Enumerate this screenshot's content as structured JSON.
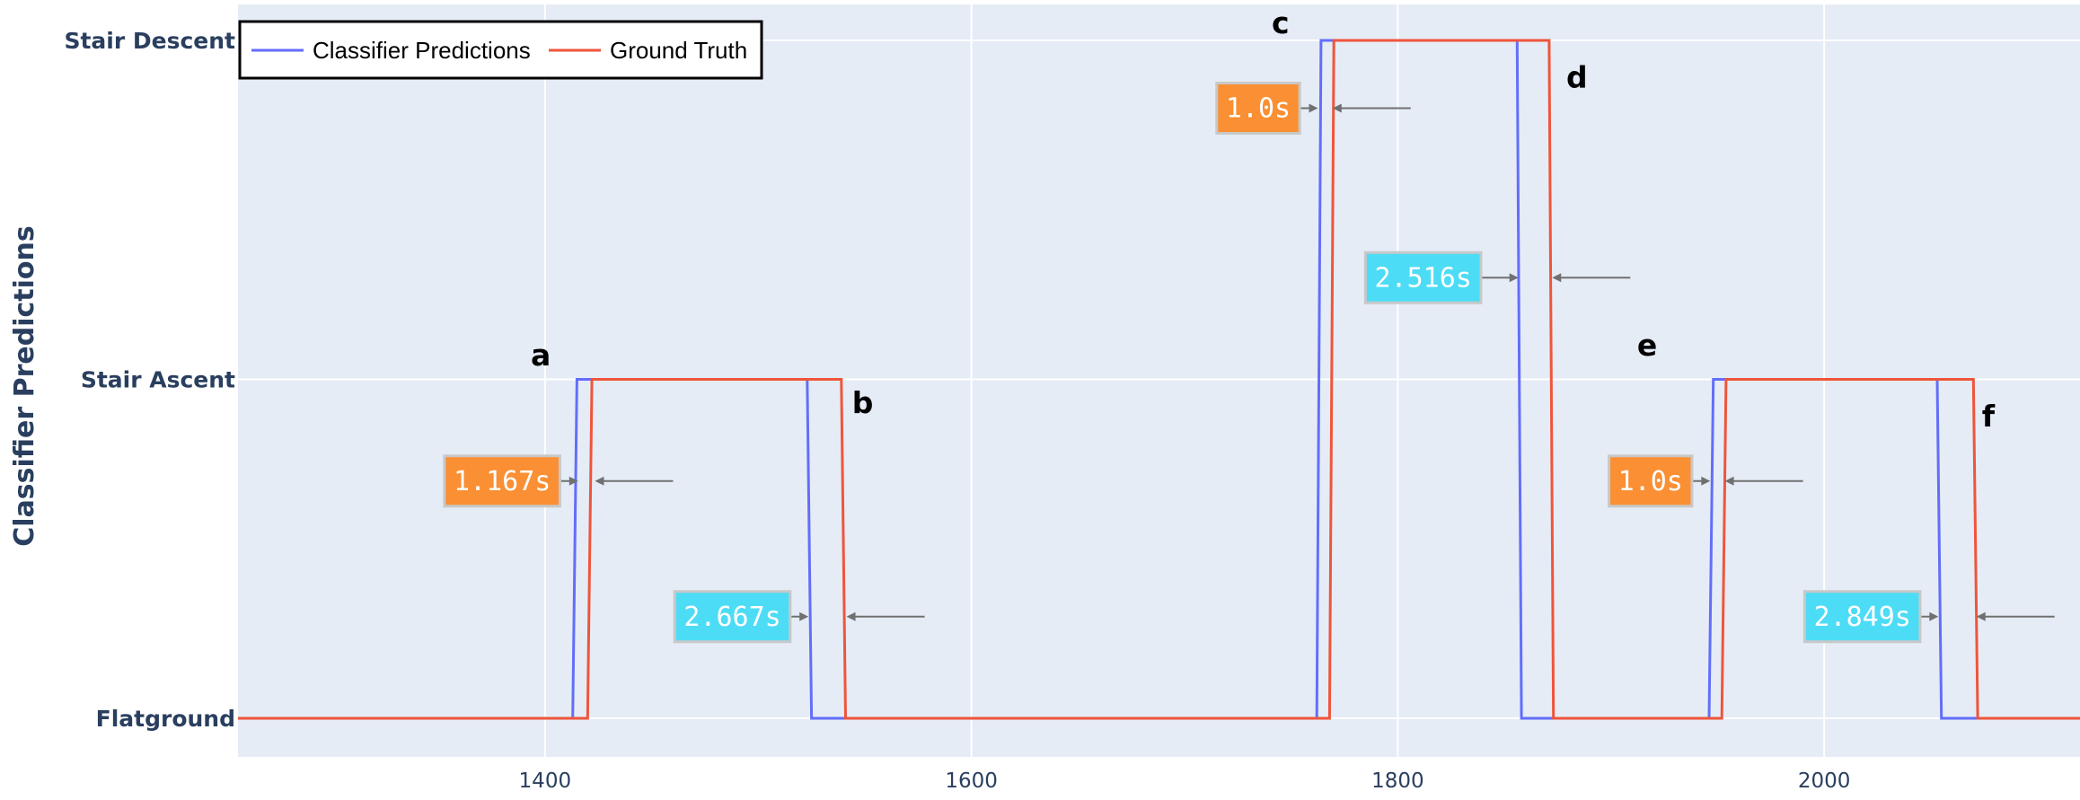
{
  "chart_data": {
    "type": "line",
    "title": "",
    "xlabel": "",
    "ylabel": "Classifier Predictions",
    "xlim": [
      1256,
      2120
    ],
    "x_ticks": [
      1400,
      1600,
      1800,
      2000
    ],
    "y_categories": [
      "Flatground",
      "Stair Ascent",
      "Stair Descent"
    ],
    "grid": true,
    "legend_position": "top-left",
    "colors": {
      "plot_bg": "#e5ecf6",
      "grid": "#ffffff",
      "axis_text": "#2a3f5f",
      "orange": "#fa8f33",
      "cyan": "#4ddcf5",
      "box_border": "#c8c8c8",
      "arrow": "#707070"
    },
    "series": [
      {
        "name": "Classifier Predictions",
        "color": "#636efa",
        "points": [
          [
            1256,
            0
          ],
          [
            1413,
            0
          ],
          [
            1415,
            1
          ],
          [
            1523,
            1
          ],
          [
            1525,
            0
          ],
          [
            1762,
            0
          ],
          [
            1764,
            2
          ],
          [
            1856,
            2
          ],
          [
            1858,
            0
          ],
          [
            1946,
            0
          ],
          [
            1948,
            1
          ],
          [
            2053,
            1
          ],
          [
            2055,
            0
          ],
          [
            2120,
            0
          ]
        ]
      },
      {
        "name": "Ground Truth",
        "color": "#ef553b",
        "points": [
          [
            1256,
            0
          ],
          [
            1420,
            0
          ],
          [
            1422,
            1
          ],
          [
            1539,
            1
          ],
          [
            1541,
            0
          ],
          [
            1768,
            0
          ],
          [
            1770,
            2
          ],
          [
            1871,
            2
          ],
          [
            1873,
            0
          ],
          [
            1952,
            0
          ],
          [
            1954,
            1
          ],
          [
            2070,
            1
          ],
          [
            2072,
            0
          ],
          [
            2120,
            0
          ]
        ]
      }
    ],
    "point_labels": [
      {
        "text": "a",
        "x": 1398,
        "y": 1.07
      },
      {
        "text": "b",
        "x": 1549,
        "y": 0.93
      },
      {
        "text": "c",
        "x": 1745,
        "y": 2.05
      },
      {
        "text": "d",
        "x": 1884,
        "y": 1.89
      },
      {
        "text": "e",
        "x": 1917,
        "y": 1.1
      },
      {
        "text": "f",
        "x": 2077,
        "y": 0.89
      }
    ],
    "annotations": [
      {
        "text": "1.167s",
        "color": "orange",
        "x_from": 1416,
        "x_to": 1423,
        "y": 0.7,
        "box_right": 1407
      },
      {
        "text": "2.667s",
        "color": "cyan",
        "x_from": 1524,
        "x_to": 1541,
        "y": 0.3,
        "box_right": 1515
      },
      {
        "text": "1.0s",
        "color": "orange",
        "x_from": 1763,
        "x_to": 1769,
        "y": 1.8,
        "box_right": 1754
      },
      {
        "text": "2.516s",
        "color": "cyan",
        "x_from": 1857,
        "x_to": 1872,
        "y": 1.3,
        "box_right": 1839
      },
      {
        "text": "1.0s",
        "color": "orange",
        "x_from": 1947,
        "x_to": 1953,
        "y": 0.7,
        "box_right": 1938
      },
      {
        "text": "2.849s",
        "color": "cyan",
        "x_from": 2054,
        "x_to": 2071,
        "y": 0.3,
        "box_right": 2045
      }
    ]
  }
}
